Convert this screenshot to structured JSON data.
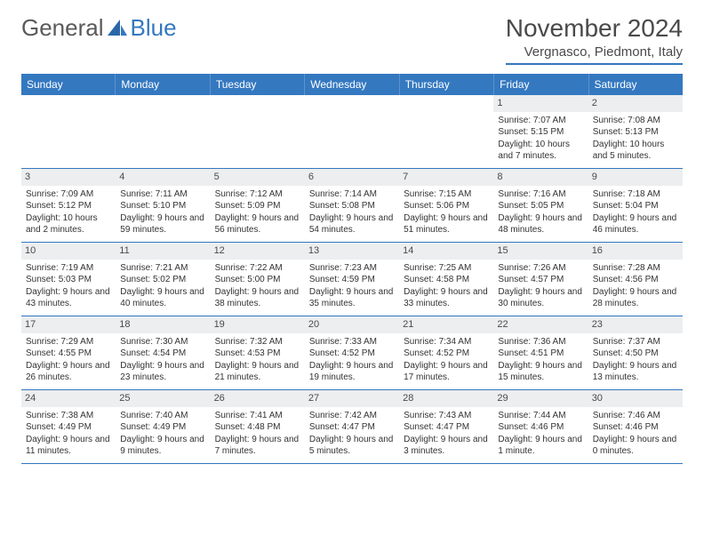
{
  "logo": {
    "text1": "General",
    "text2": "Blue"
  },
  "title": "November 2024",
  "location": "Vergnasco, Piedmont, Italy",
  "colors": {
    "header_bg": "#3478c0",
    "header_text": "#ffffff",
    "daynum_bg": "#eceeef",
    "border": "#3478c0",
    "logo_gray": "#5a5a5a",
    "logo_blue": "#3478c0"
  },
  "day_names": [
    "Sunday",
    "Monday",
    "Tuesday",
    "Wednesday",
    "Thursday",
    "Friday",
    "Saturday"
  ],
  "weeks": [
    [
      null,
      null,
      null,
      null,
      null,
      {
        "n": "1",
        "sunrise": "7:07 AM",
        "sunset": "5:15 PM",
        "daylight": "10 hours and 7 minutes."
      },
      {
        "n": "2",
        "sunrise": "7:08 AM",
        "sunset": "5:13 PM",
        "daylight": "10 hours and 5 minutes."
      }
    ],
    [
      {
        "n": "3",
        "sunrise": "7:09 AM",
        "sunset": "5:12 PM",
        "daylight": "10 hours and 2 minutes."
      },
      {
        "n": "4",
        "sunrise": "7:11 AM",
        "sunset": "5:10 PM",
        "daylight": "9 hours and 59 minutes."
      },
      {
        "n": "5",
        "sunrise": "7:12 AM",
        "sunset": "5:09 PM",
        "daylight": "9 hours and 56 minutes."
      },
      {
        "n": "6",
        "sunrise": "7:14 AM",
        "sunset": "5:08 PM",
        "daylight": "9 hours and 54 minutes."
      },
      {
        "n": "7",
        "sunrise": "7:15 AM",
        "sunset": "5:06 PM",
        "daylight": "9 hours and 51 minutes."
      },
      {
        "n": "8",
        "sunrise": "7:16 AM",
        "sunset": "5:05 PM",
        "daylight": "9 hours and 48 minutes."
      },
      {
        "n": "9",
        "sunrise": "7:18 AM",
        "sunset": "5:04 PM",
        "daylight": "9 hours and 46 minutes."
      }
    ],
    [
      {
        "n": "10",
        "sunrise": "7:19 AM",
        "sunset": "5:03 PM",
        "daylight": "9 hours and 43 minutes."
      },
      {
        "n": "11",
        "sunrise": "7:21 AM",
        "sunset": "5:02 PM",
        "daylight": "9 hours and 40 minutes."
      },
      {
        "n": "12",
        "sunrise": "7:22 AM",
        "sunset": "5:00 PM",
        "daylight": "9 hours and 38 minutes."
      },
      {
        "n": "13",
        "sunrise": "7:23 AM",
        "sunset": "4:59 PM",
        "daylight": "9 hours and 35 minutes."
      },
      {
        "n": "14",
        "sunrise": "7:25 AM",
        "sunset": "4:58 PM",
        "daylight": "9 hours and 33 minutes."
      },
      {
        "n": "15",
        "sunrise": "7:26 AM",
        "sunset": "4:57 PM",
        "daylight": "9 hours and 30 minutes."
      },
      {
        "n": "16",
        "sunrise": "7:28 AM",
        "sunset": "4:56 PM",
        "daylight": "9 hours and 28 minutes."
      }
    ],
    [
      {
        "n": "17",
        "sunrise": "7:29 AM",
        "sunset": "4:55 PM",
        "daylight": "9 hours and 26 minutes."
      },
      {
        "n": "18",
        "sunrise": "7:30 AM",
        "sunset": "4:54 PM",
        "daylight": "9 hours and 23 minutes."
      },
      {
        "n": "19",
        "sunrise": "7:32 AM",
        "sunset": "4:53 PM",
        "daylight": "9 hours and 21 minutes."
      },
      {
        "n": "20",
        "sunrise": "7:33 AM",
        "sunset": "4:52 PM",
        "daylight": "9 hours and 19 minutes."
      },
      {
        "n": "21",
        "sunrise": "7:34 AM",
        "sunset": "4:52 PM",
        "daylight": "9 hours and 17 minutes."
      },
      {
        "n": "22",
        "sunrise": "7:36 AM",
        "sunset": "4:51 PM",
        "daylight": "9 hours and 15 minutes."
      },
      {
        "n": "23",
        "sunrise": "7:37 AM",
        "sunset": "4:50 PM",
        "daylight": "9 hours and 13 minutes."
      }
    ],
    [
      {
        "n": "24",
        "sunrise": "7:38 AM",
        "sunset": "4:49 PM",
        "daylight": "9 hours and 11 minutes."
      },
      {
        "n": "25",
        "sunrise": "7:40 AM",
        "sunset": "4:49 PM",
        "daylight": "9 hours and 9 minutes."
      },
      {
        "n": "26",
        "sunrise": "7:41 AM",
        "sunset": "4:48 PM",
        "daylight": "9 hours and 7 minutes."
      },
      {
        "n": "27",
        "sunrise": "7:42 AM",
        "sunset": "4:47 PM",
        "daylight": "9 hours and 5 minutes."
      },
      {
        "n": "28",
        "sunrise": "7:43 AM",
        "sunset": "4:47 PM",
        "daylight": "9 hours and 3 minutes."
      },
      {
        "n": "29",
        "sunrise": "7:44 AM",
        "sunset": "4:46 PM",
        "daylight": "9 hours and 1 minute."
      },
      {
        "n": "30",
        "sunrise": "7:46 AM",
        "sunset": "4:46 PM",
        "daylight": "9 hours and 0 minutes."
      }
    ]
  ],
  "labels": {
    "sunrise": "Sunrise:",
    "sunset": "Sunset:",
    "daylight": "Daylight:"
  }
}
